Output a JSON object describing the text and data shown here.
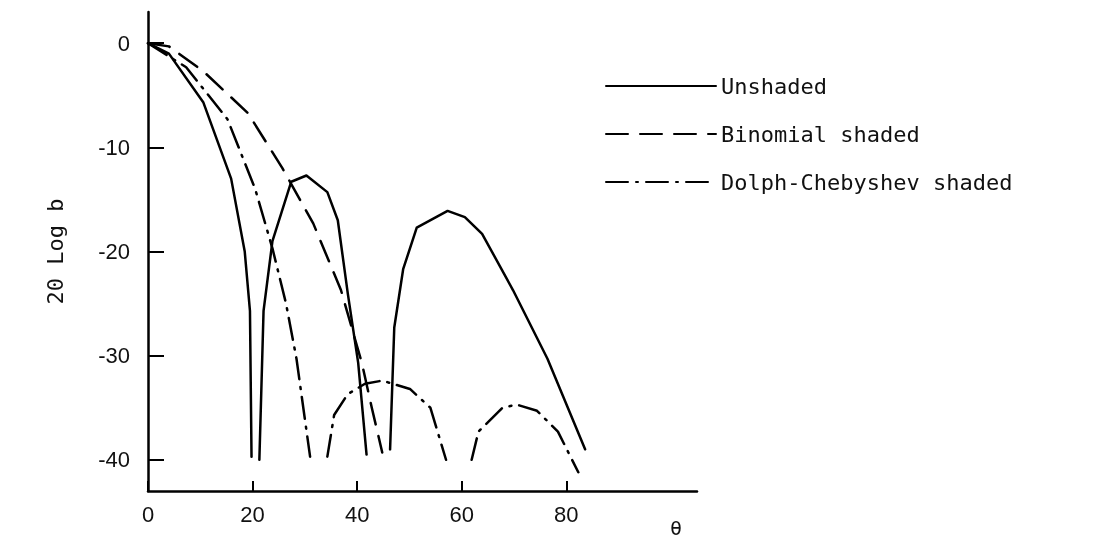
{
  "chart_data": {
    "type": "line",
    "xlabel": "θ",
    "ylabel": "20 Log b",
    "xlim": [
      0,
      105
    ],
    "xticks": [
      0,
      20,
      40,
      60,
      80
    ],
    "ylim": [
      -43,
      3
    ],
    "yticks": [
      0,
      -10,
      -20,
      -30,
      -40
    ],
    "grid": false,
    "legend": "top right",
    "marker": "none",
    "series": [
      {
        "name": "Unshaded",
        "color": "#000000",
        "line_style": "solid",
        "x": [
          0,
          4,
          10.6,
          15.9,
          18.5,
          19.5,
          19.8,
          20.5,
          21.3,
          22.1,
          23.8,
          27.4,
          30.3,
          34.3,
          36.3,
          38.2,
          40.2,
          41.8,
          44,
          46.3,
          47.1,
          48.8,
          51.4,
          57.3,
          60.6,
          63.9,
          69.8,
          76.4,
          83.6
        ],
        "values": [
          0,
          -1,
          -5.7,
          -13,
          -20,
          -25.7,
          -39.7,
          null,
          -40,
          -25.7,
          -19,
          -13.3,
          -12.7,
          -14.3,
          -17,
          -24,
          -30.7,
          -39.5,
          null,
          -39,
          -27.3,
          -21.7,
          -17.7,
          -16.1,
          -16.7,
          -18.3,
          -23.7,
          -30.3,
          -39
        ]
      },
      {
        "name": "Binomial shaded",
        "color": "#000000",
        "line_style": "dashed",
        "x": [
          0,
          4,
          10.6,
          19.1,
          25.7,
          31.6,
          36.9,
          40.9,
          42.8,
          44.8
        ],
        "values": [
          0,
          -0.3,
          -2.7,
          -6.7,
          -12,
          -17.3,
          -23.7,
          -30.7,
          -35,
          -39.3
        ]
      },
      {
        "name": "Dolph-Chebyshev shaded",
        "color": "#000000",
        "line_style": "dashdot",
        "x": [
          0,
          7.3,
          15.2,
          20.5,
          23.8,
          26.4,
          28.4,
          31,
          32.5,
          34.3,
          35.6,
          38.2,
          41.5,
          44.8,
          50.1,
          54,
          57,
          59.5,
          61.9,
          63.2,
          67.8,
          70.5,
          74.4,
          78.4,
          82.3
        ],
        "values": [
          0,
          -2.3,
          -7.3,
          -14,
          -19.7,
          -25,
          -30.3,
          -39.7,
          null,
          -39.7,
          -35.7,
          -33.7,
          -32.7,
          -32.4,
          -33.2,
          -35,
          -40,
          null,
          -40,
          -37.3,
          -35,
          -34.7,
          -35.3,
          -37.3,
          -41.2
        ]
      }
    ]
  }
}
